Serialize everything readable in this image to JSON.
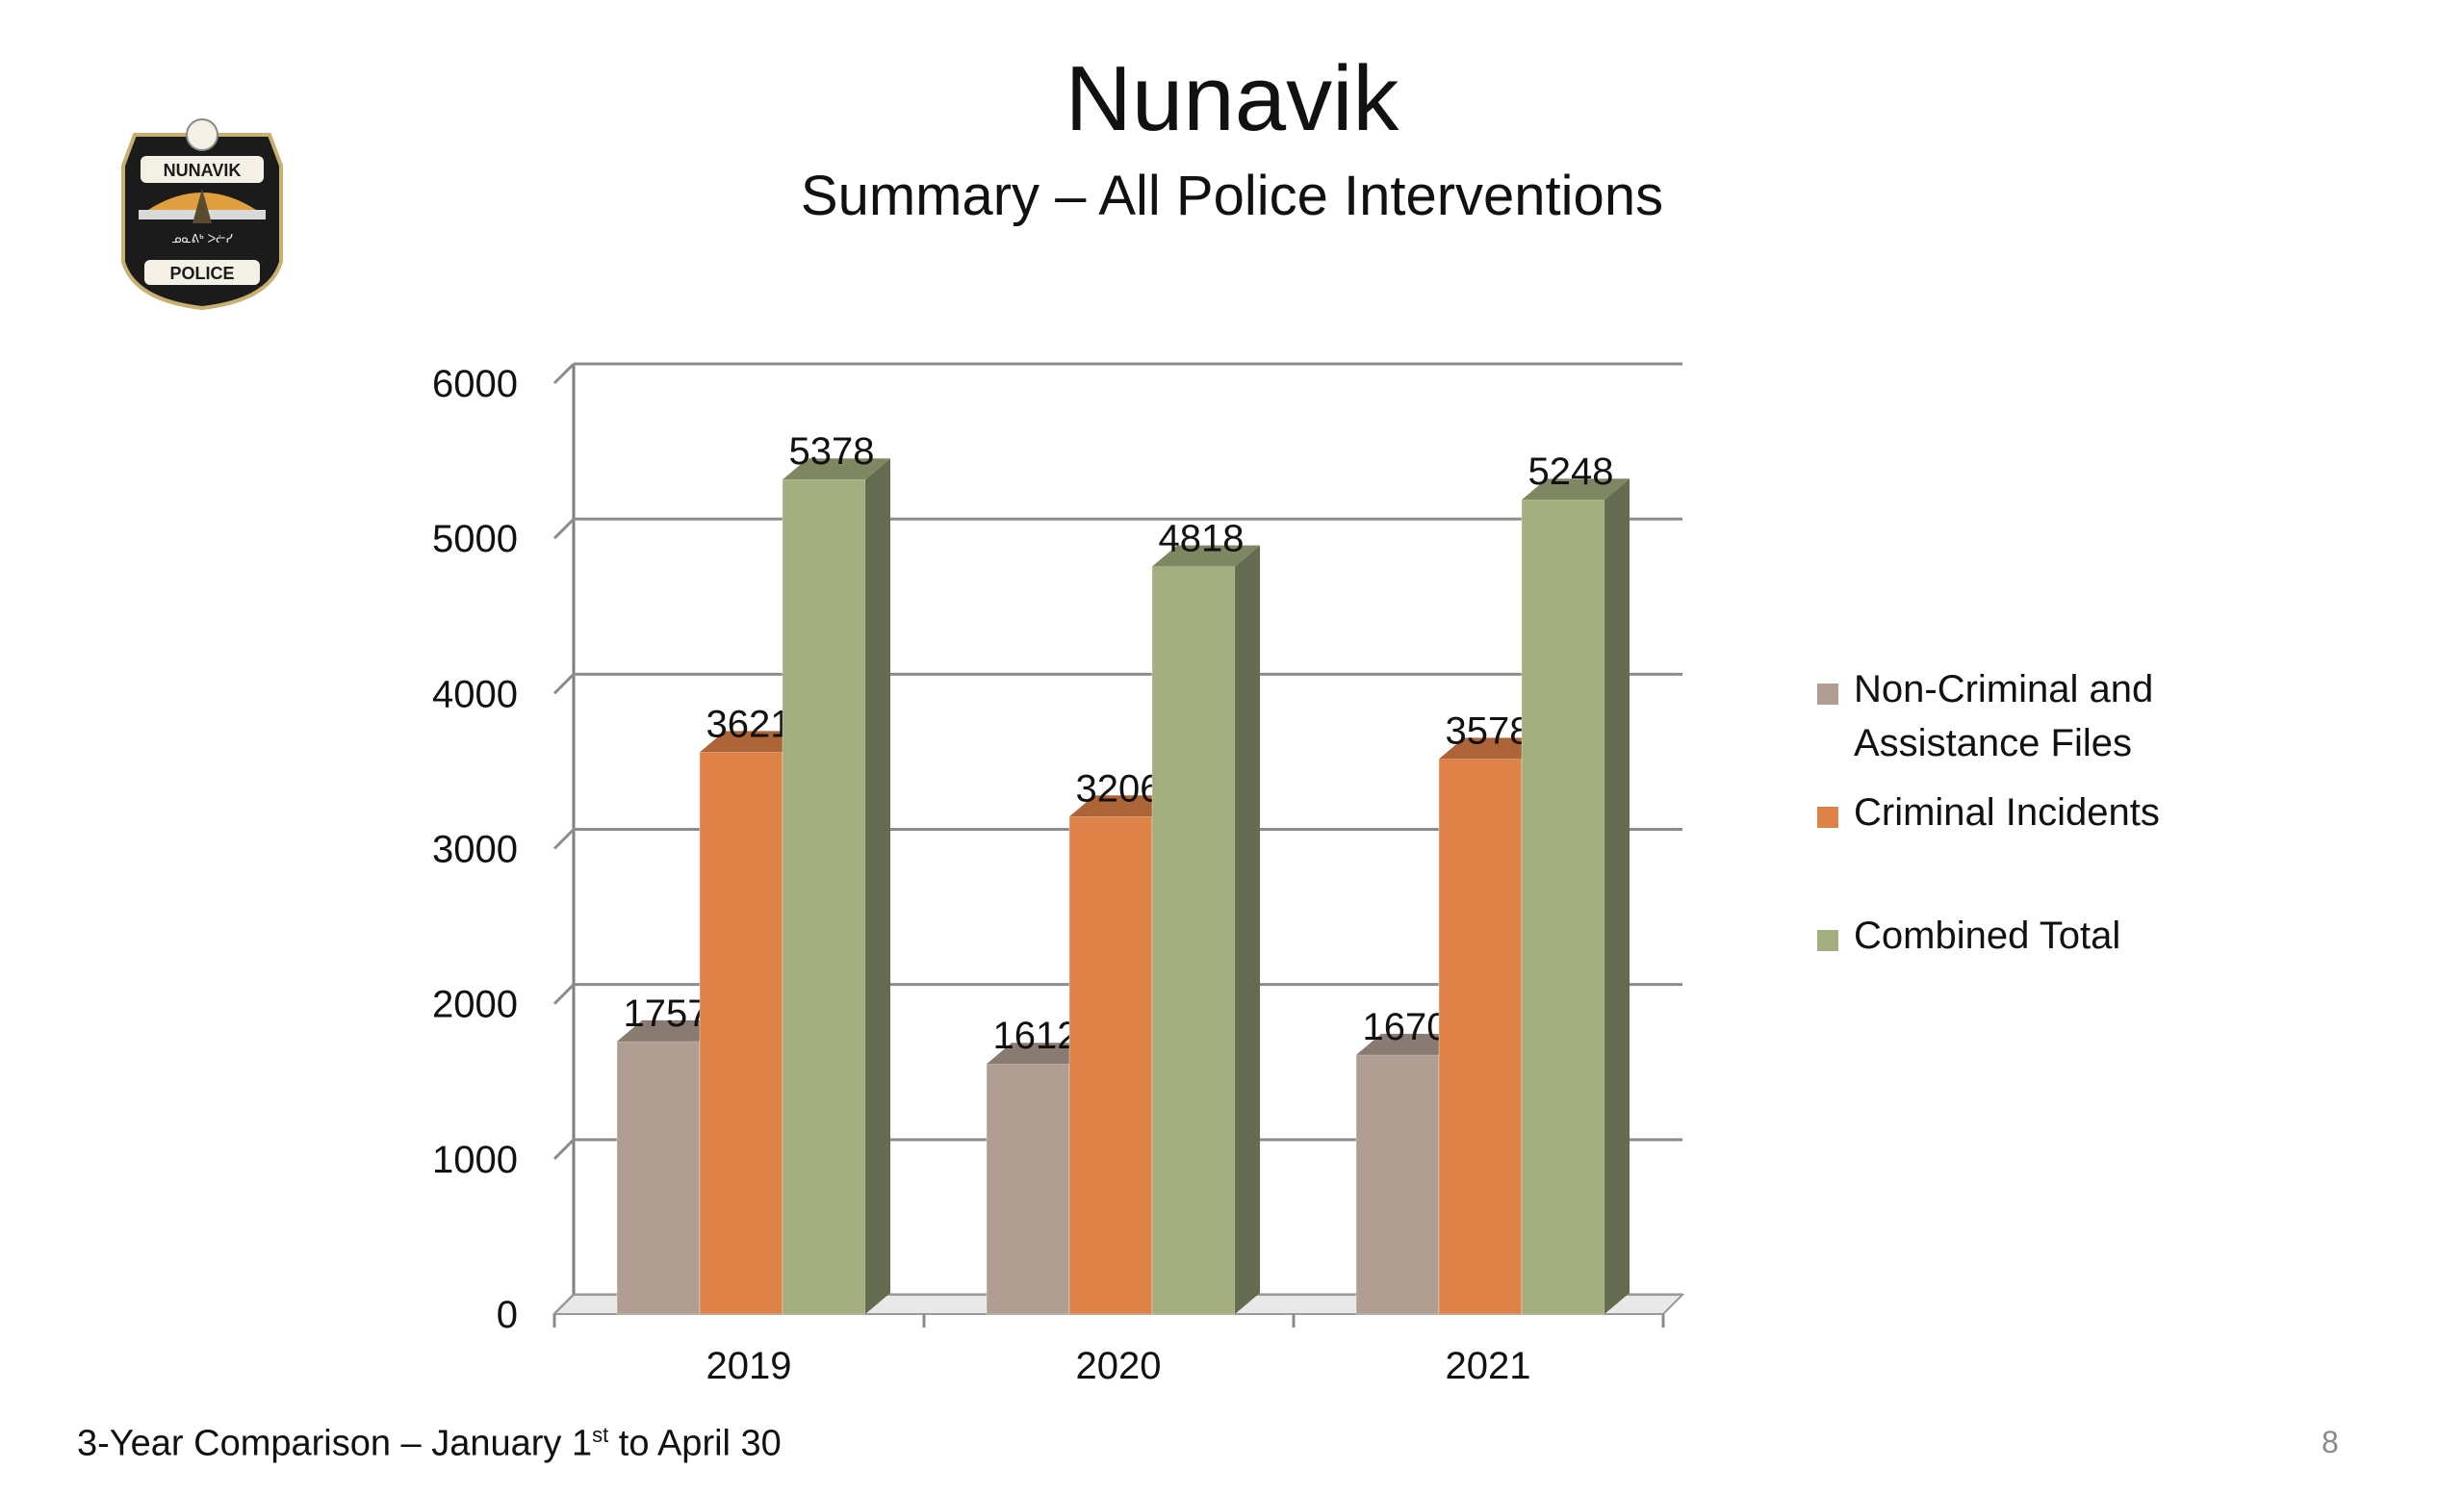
{
  "title": "Nunavik",
  "subtitle": "Summary – All Police Interventions",
  "logo": {
    "text_top": "NUNAVIK",
    "text_bottom": "POLICE",
    "text_middle": "ᓄᓇᕕᒃ ᐳᓖᓯ"
  },
  "footnote": {
    "before": "3-Year Comparison – January 1",
    "sup": "st",
    "after": " to April 30"
  },
  "page_number": "8",
  "colors": {
    "non_criminal": "#B09E92",
    "criminal": "#DE8247",
    "combined": "#A3AD7D"
  },
  "chart_data": {
    "type": "bar",
    "style": "3d-clustered",
    "categories": [
      "2019",
      "2020",
      "2021"
    ],
    "series": [
      {
        "name": "Non-Criminal and Assistance Files",
        "legend_lines": [
          "Non-Criminal and",
          "Assistance Files"
        ],
        "values": [
          1757,
          1612,
          1670
        ]
      },
      {
        "name": "Criminal Incidents",
        "legend_lines": [
          "Criminal Incidents"
        ],
        "values": [
          3621,
          3206,
          3578
        ]
      },
      {
        "name": "Combined Total",
        "legend_lines": [
          "Combined Total"
        ],
        "values": [
          5378,
          4818,
          5248
        ]
      }
    ],
    "ylim": [
      0,
      6000
    ],
    "yticks": [
      0,
      1000,
      2000,
      3000,
      4000,
      5000,
      6000
    ],
    "grid": true,
    "data_labels": true,
    "legend_position": "right"
  }
}
